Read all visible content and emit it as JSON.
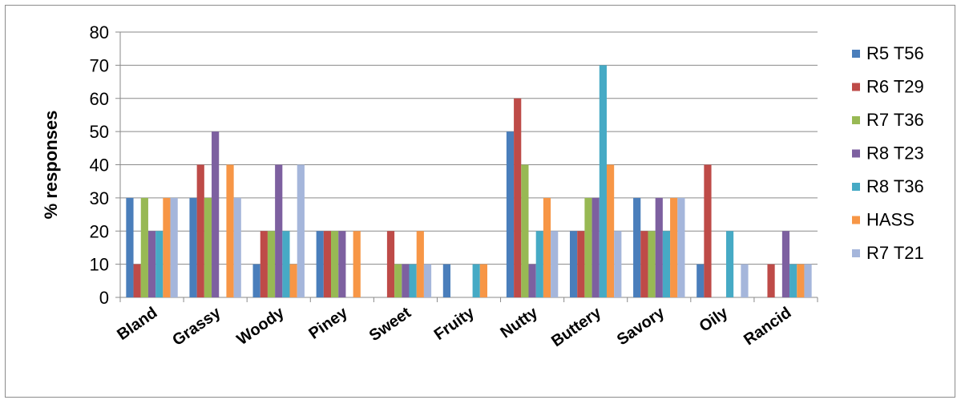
{
  "chart_data": {
    "type": "bar",
    "title": "",
    "xlabel": "",
    "ylabel": "% responses",
    "ylim": [
      0,
      80
    ],
    "yticks": [
      0,
      10,
      20,
      30,
      40,
      50,
      60,
      70,
      80
    ],
    "grid": true,
    "legend_position": "right",
    "categories": [
      "Bland",
      "Grassy",
      "Woody",
      "Piney",
      "Sweet",
      "Fruity",
      "Nutty",
      "Buttery",
      "Savory",
      "Oily",
      "Rancid"
    ],
    "series": [
      {
        "name": "R5 T56",
        "color": "#4a7ebb",
        "values": [
          30,
          30,
          10,
          20,
          0,
          10,
          50,
          20,
          30,
          10,
          0
        ]
      },
      {
        "name": "R6 T29",
        "color": "#be4b48",
        "values": [
          10,
          40,
          20,
          20,
          20,
          0,
          60,
          20,
          20,
          40,
          10
        ]
      },
      {
        "name": "R7 T36",
        "color": "#98b954",
        "values": [
          30,
          30,
          20,
          20,
          10,
          0,
          40,
          30,
          20,
          0,
          0
        ]
      },
      {
        "name": "R8 T23",
        "color": "#7d60a0",
        "values": [
          20,
          50,
          40,
          20,
          10,
          0,
          10,
          30,
          30,
          0,
          20
        ]
      },
      {
        "name": "R8 T36",
        "color": "#46aac5",
        "values": [
          20,
          0,
          20,
          0,
          10,
          10,
          20,
          70,
          20,
          20,
          10
        ]
      },
      {
        "name": "HASS",
        "color": "#f79646",
        "values": [
          30,
          40,
          10,
          20,
          20,
          10,
          30,
          40,
          30,
          0,
          10
        ]
      },
      {
        "name": "R7 T21",
        "color": "#a5b6db",
        "values": [
          30,
          30,
          40,
          0,
          10,
          0,
          20,
          20,
          30,
          10,
          10
        ]
      }
    ]
  }
}
